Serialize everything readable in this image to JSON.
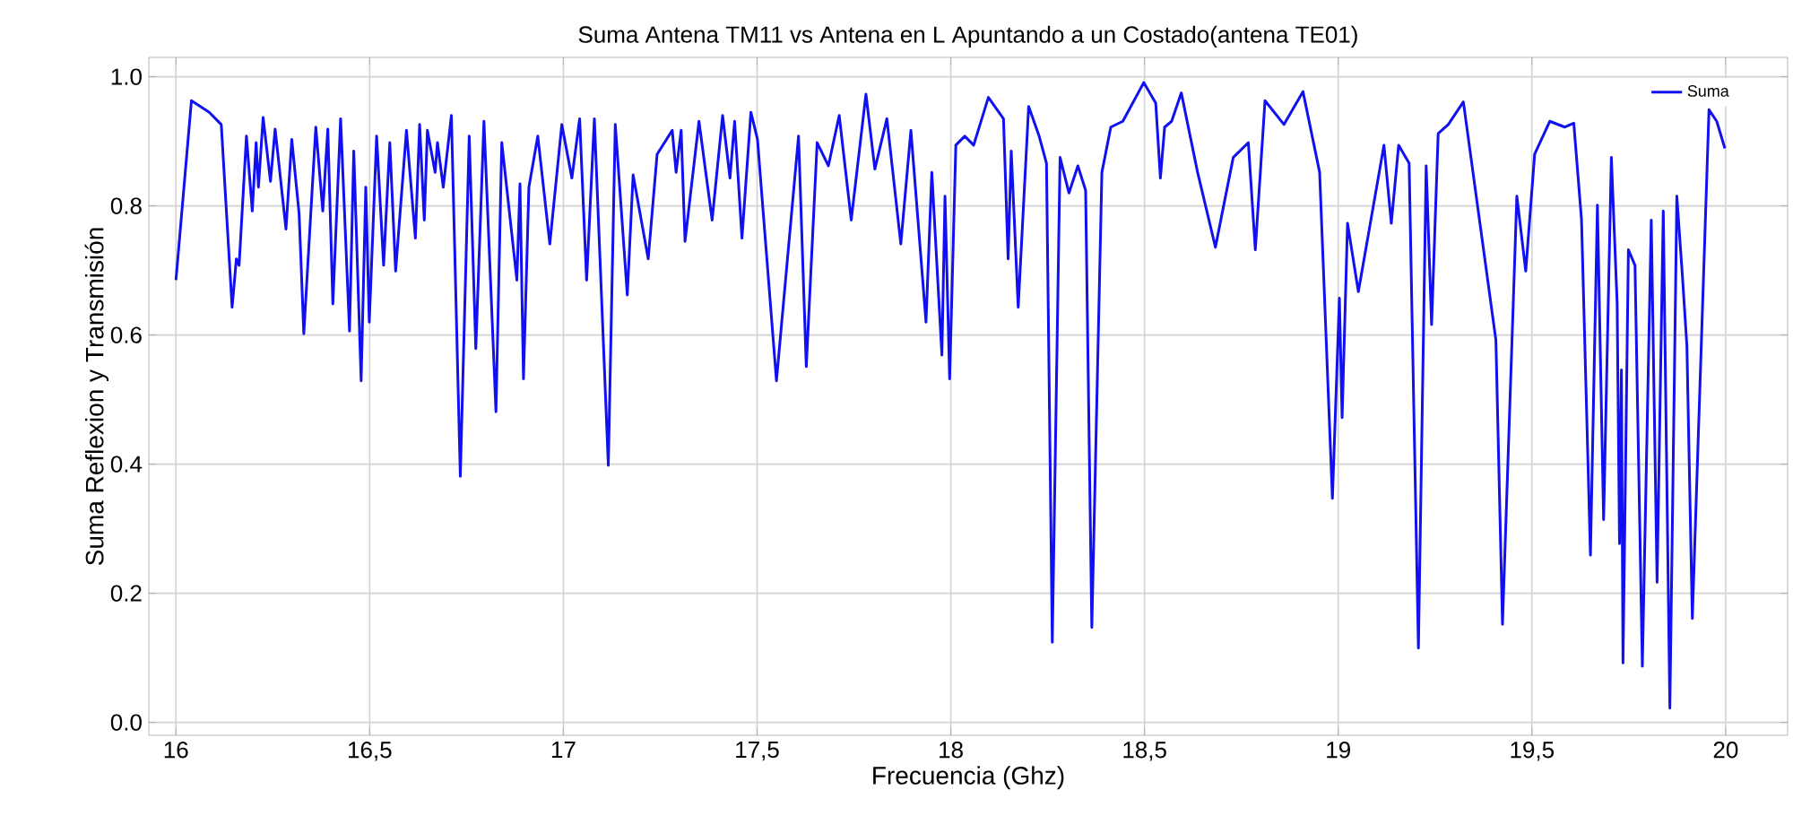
{
  "chart_data": {
    "type": "line",
    "title": "Suma Antena TM11 vs Antena en L Apuntando a un Costado(antena TE01)",
    "xlabel": "Frecuencia (Ghz)",
    "ylabel": "Suma Reflexion y Transmisión",
    "xlim": [
      15.93,
      20.16
    ],
    "ylim": [
      -0.02,
      1.03
    ],
    "xticks": [
      16,
      {
        "value": 16.5,
        "label": "16,5"
      },
      17,
      {
        "value": 17.5,
        "label": "17,5"
      },
      18,
      {
        "value": 18.5,
        "label": "18,5"
      },
      19,
      {
        "value": 19.5,
        "label": "19,5"
      },
      20
    ],
    "yticks": [
      {
        "value": 0,
        "label": "0.0"
      },
      0.2,
      0.4,
      0.6,
      0.8,
      {
        "value": 1,
        "label": "1.0"
      }
    ],
    "grid": true,
    "legend": "top right",
    "line_style": "solid",
    "marker": "none",
    "x": [
      16.0,
      16.04,
      16.086,
      16.117,
      16.145,
      16.156,
      16.163,
      16.182,
      16.197,
      16.207,
      16.213,
      16.225,
      16.244,
      16.256,
      16.284,
      16.299,
      16.318,
      16.33,
      16.361,
      16.379,
      16.392,
      16.405,
      16.425,
      16.448,
      16.459,
      16.478,
      16.49,
      16.499,
      16.518,
      16.536,
      16.552,
      16.567,
      16.595,
      16.618,
      16.629,
      16.641,
      16.649,
      16.669,
      16.675,
      16.69,
      16.711,
      16.734,
      16.757,
      16.774,
      16.795,
      16.826,
      16.841,
      16.88,
      16.888,
      16.897,
      16.911,
      16.934,
      16.965,
      16.996,
      17.022,
      17.042,
      17.06,
      17.08,
      17.116,
      17.134,
      17.165,
      17.18,
      17.219,
      17.242,
      17.281,
      17.291,
      17.304,
      17.314,
      17.35,
      17.384,
      17.411,
      17.43,
      17.442,
      17.461,
      17.484,
      17.501,
      17.55,
      17.607,
      17.627,
      17.655,
      17.684,
      17.712,
      17.743,
      17.781,
      17.804,
      17.835,
      17.871,
      17.897,
      17.936,
      17.951,
      17.977,
      17.985,
      17.997,
      18.013,
      18.036,
      18.059,
      18.097,
      18.136,
      18.148,
      18.156,
      18.174,
      18.201,
      18.228,
      18.247,
      18.262,
      18.282,
      18.305,
      18.328,
      18.348,
      18.364,
      18.39,
      18.413,
      18.444,
      18.498,
      18.529,
      18.541,
      18.552,
      18.57,
      18.595,
      18.637,
      18.683,
      18.729,
      18.768,
      18.786,
      18.811,
      18.86,
      18.909,
      18.952,
      18.985,
      19.003,
      19.01,
      19.024,
      19.052,
      19.118,
      19.137,
      19.156,
      19.183,
      19.207,
      19.227,
      19.241,
      19.258,
      19.284,
      19.323,
      19.407,
      19.424,
      19.461,
      19.484,
      19.507,
      19.546,
      19.585,
      19.608,
      19.628,
      19.651,
      19.669,
      19.685,
      19.705,
      19.72,
      19.726,
      19.731,
      19.735,
      19.749,
      19.766,
      19.785,
      19.808,
      19.823,
      19.839,
      19.856,
      19.874,
      19.888,
      19.9,
      19.914,
      19.957,
      19.977,
      19.998
    ],
    "series": [
      {
        "name": "Suma",
        "color": "#1010f0",
        "values": [
          0.685,
          0.963,
          0.945,
          0.926,
          0.643,
          0.718,
          0.708,
          0.908,
          0.792,
          0.898,
          0.829,
          0.937,
          0.838,
          0.919,
          0.764,
          0.903,
          0.787,
          0.602,
          0.922,
          0.792,
          0.919,
          0.648,
          0.935,
          0.606,
          0.885,
          0.529,
          0.829,
          0.62,
          0.908,
          0.708,
          0.898,
          0.699,
          0.917,
          0.75,
          0.926,
          0.778,
          0.917,
          0.852,
          0.898,
          0.829,
          0.94,
          0.381,
          0.908,
          0.579,
          0.931,
          0.481,
          0.898,
          0.685,
          0.834,
          0.532,
          0.829,
          0.908,
          0.741,
          0.926,
          0.843,
          0.935,
          0.685,
          0.935,
          0.398,
          0.926,
          0.662,
          0.848,
          0.718,
          0.88,
          0.917,
          0.852,
          0.917,
          0.745,
          0.931,
          0.778,
          0.94,
          0.843,
          0.931,
          0.75,
          0.945,
          0.903,
          0.529,
          0.908,
          0.551,
          0.898,
          0.862,
          0.94,
          0.778,
          0.973,
          0.857,
          0.935,
          0.741,
          0.917,
          0.62,
          0.852,
          0.569,
          0.815,
          0.532,
          0.894,
          0.908,
          0.894,
          0.968,
          0.935,
          0.718,
          0.885,
          0.643,
          0.954,
          0.908,
          0.866,
          0.124,
          0.875,
          0.82,
          0.862,
          0.824,
          0.147,
          0.852,
          0.922,
          0.931,
          0.991,
          0.959,
          0.843,
          0.922,
          0.931,
          0.975,
          0.852,
          0.736,
          0.875,
          0.898,
          0.732,
          0.963,
          0.926,
          0.977,
          0.852,
          0.347,
          0.657,
          0.472,
          0.773,
          0.667,
          0.894,
          0.773,
          0.894,
          0.866,
          0.115,
          0.862,
          0.616,
          0.912,
          0.926,
          0.961,
          0.592,
          0.152,
          0.815,
          0.699,
          0.88,
          0.931,
          0.922,
          0.928,
          0.778,
          0.259,
          0.801,
          0.314,
          0.875,
          0.648,
          0.277,
          0.546,
          0.092,
          0.732,
          0.708,
          0.087,
          0.778,
          0.217,
          0.792,
          0.022,
          0.815,
          0.695,
          0.583,
          0.161,
          0.949,
          0.931,
          0.889
        ]
      }
    ]
  }
}
